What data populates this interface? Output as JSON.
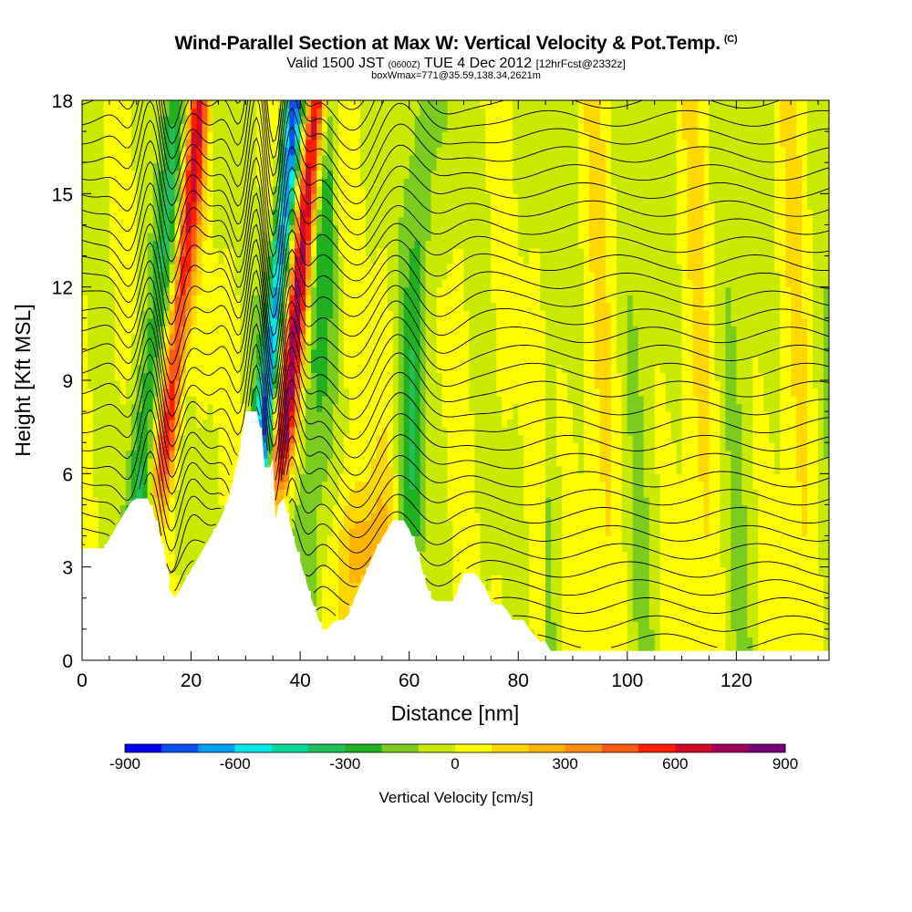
{
  "header": {
    "title": "Wind-Parallel Section at Max W: Vertical Velocity & Pot.Temp.",
    "copyright_mark": "(C)",
    "valid_main": "Valid 1500 JST",
    "valid_utc": "(0600Z)",
    "valid_date": "TUE 4 Dec 2012",
    "forecast": "[12hrFcst@2332z]",
    "box_info": "boxWmax=771@35.59,138.34,2621m"
  },
  "chart_data": {
    "type": "heatmap",
    "title": "Wind-Parallel Section at Max W: Vertical Velocity & Pot.Temp.",
    "xlabel": "Distance [nm]",
    "ylabel": "Height [Kft MSL]",
    "xlim": [
      0,
      137
    ],
    "ylim": [
      0,
      18
    ],
    "x_ticks": [
      0,
      20,
      40,
      60,
      80,
      100,
      120
    ],
    "y_ticks": [
      0,
      3,
      6,
      9,
      12,
      15,
      18
    ],
    "colorbar": {
      "label": "Vertical Velocity [cm/s]",
      "levels": [
        -900,
        -800,
        -700,
        -600,
        -500,
        -400,
        -300,
        -200,
        -100,
        0,
        100,
        200,
        300,
        400,
        500,
        600,
        700,
        800,
        900
      ],
      "tick_values": [
        -900,
        -600,
        -300,
        0,
        300,
        600,
        900
      ],
      "colors": [
        "#0000f0",
        "#0a50f0",
        "#00a0f0",
        "#00e8e8",
        "#00d89a",
        "#1fbf5a",
        "#21b020",
        "#7ccc20",
        "#c8ea00",
        "#ffff00",
        "#ffd800",
        "#ffb400",
        "#ff8c14",
        "#ff5a14",
        "#ff1e00",
        "#d20a28",
        "#a0005a",
        "#780078"
      ]
    },
    "updrafts": [
      {
        "x_center": 15,
        "peak_cms": 600
      },
      {
        "x_center": 36.5,
        "peak_cms": 771
      },
      {
        "x_center": 52,
        "peak_cms": 300
      }
    ],
    "downdrafts": [
      {
        "x_center": 11,
        "peak_cms": -300
      },
      {
        "x_center": 32.5,
        "peak_cms": -700
      },
      {
        "x_center": 42,
        "peak_cms": -250
      },
      {
        "x_center": 60.5,
        "peak_cms": -250
      }
    ],
    "terrain_profile": {
      "x": [
        0,
        4,
        5,
        6,
        7,
        8,
        9,
        10,
        12,
        13,
        14,
        15,
        15.5,
        16,
        17,
        18,
        19,
        20,
        21,
        22,
        23,
        24,
        25,
        26,
        27,
        28,
        29,
        30,
        31,
        32,
        33,
        33.5,
        34.5,
        35,
        35.5,
        36,
        37,
        38,
        39,
        40,
        41,
        42,
        43,
        44,
        45,
        46,
        47,
        48,
        49,
        50,
        51,
        52,
        53,
        54,
        55,
        56,
        57,
        58,
        59,
        60,
        61,
        62,
        63,
        64,
        65,
        66,
        67,
        68,
        69,
        70,
        71,
        72,
        73,
        74,
        75,
        76,
        77,
        78,
        79,
        80,
        81,
        82,
        83,
        84,
        85,
        86,
        87,
        137
      ],
      "y": [
        3.6,
        3.6,
        3.9,
        4.2,
        4.5,
        4.8,
        5.1,
        5.2,
        5.2,
        4.8,
        4.2,
        3.6,
        3.0,
        2.3,
        2.0,
        2.3,
        2.6,
        2.9,
        3.2,
        3.5,
        3.8,
        4.1,
        4.4,
        4.8,
        5.3,
        6.0,
        6.8,
        8.0,
        8.0,
        8.0,
        7.2,
        6.2,
        6.2,
        6.5,
        4.5,
        5.0,
        5.2,
        4.5,
        3.8,
        3.2,
        2.6,
        2.0,
        1.5,
        1.0,
        1.0,
        1.2,
        1.3,
        1.3,
        1.5,
        2.0,
        2.4,
        2.8,
        3.2,
        3.6,
        3.9,
        4.2,
        4.5,
        4.5,
        4.5,
        4.2,
        3.8,
        3.2,
        2.5,
        2.0,
        1.9,
        1.9,
        1.9,
        1.9,
        2.3,
        2.8,
        2.8,
        2.8,
        2.6,
        2.3,
        1.9,
        1.8,
        1.8,
        1.6,
        1.3,
        1.3,
        1.3,
        1.0,
        0.8,
        0.6,
        0.6,
        0.3,
        0.3,
        0.3
      ]
    },
    "potential_temperature_contours": "black isentropes every 1 K, wave-perturbed over terrain"
  }
}
